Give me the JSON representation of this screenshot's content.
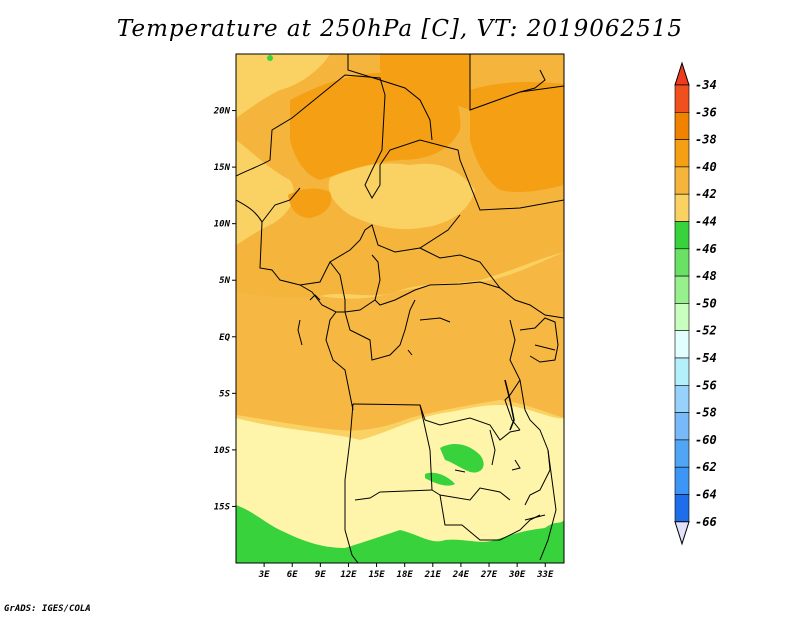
{
  "title": "Temperature at 250hPa [C], VT: 2019062515",
  "footer": "GrADS: IGES/COLA",
  "map": {
    "lon_range": [
      0,
      35
    ],
    "lat_range": [
      -20,
      25
    ],
    "lon_ticks": [
      {
        "value": 3,
        "label": "3E"
      },
      {
        "value": 6,
        "label": "6E"
      },
      {
        "value": 9,
        "label": "9E"
      },
      {
        "value": 12,
        "label": "12E"
      },
      {
        "value": 15,
        "label": "15E"
      },
      {
        "value": 18,
        "label": "18E"
      },
      {
        "value": 21,
        "label": "21E"
      },
      {
        "value": 24,
        "label": "24E"
      },
      {
        "value": 27,
        "label": "27E"
      },
      {
        "value": 30,
        "label": "30E"
      },
      {
        "value": 33,
        "label": "33E"
      }
    ],
    "lat_ticks": [
      {
        "value": 20,
        "label": "20N"
      },
      {
        "value": 15,
        "label": "15N"
      },
      {
        "value": 10,
        "label": "10N"
      },
      {
        "value": 5,
        "label": "5N"
      },
      {
        "value": 0,
        "label": "EQ"
      },
      {
        "value": -5,
        "label": "5S"
      },
      {
        "value": -10,
        "label": "10S"
      },
      {
        "value": -15,
        "label": "15S"
      }
    ]
  },
  "colorbar": {
    "levels": [
      {
        "label": "-34",
        "color": "#f0501e"
      },
      {
        "label": "-36",
        "color": "#f08200"
      },
      {
        "label": "-38",
        "color": "#f5a014"
      },
      {
        "label": "-40",
        "color": "#f5b43c"
      },
      {
        "label": "-42",
        "color": "#fad264"
      },
      {
        "label": "-44",
        "color": "#fff5aa"
      },
      {
        "label": "-46",
        "color": "#37d23c"
      },
      {
        "label": "-48",
        "color": "#69e164"
      },
      {
        "label": "-50",
        "color": "#96f08c"
      },
      {
        "label": "-52",
        "color": "#c8ffbe"
      },
      {
        "label": "-54",
        "color": "#e1ffff"
      },
      {
        "label": "-56",
        "color": "#b4f0fa"
      },
      {
        "label": "-58",
        "color": "#96d2fa"
      },
      {
        "label": "-60",
        "color": "#78b9fa"
      },
      {
        "label": "-62",
        "color": "#50a5f5"
      },
      {
        "label": "-64",
        "color": "#3c96f5"
      },
      {
        "label": "-66",
        "color": "#1e6eeb"
      }
    ],
    "under_color": "#1450d2",
    "extra_colors": [
      "#0f3ca5",
      "#0a1e78"
    ],
    "bottom_triangle_color": "#e1e1fa",
    "top_triangle_color": "#f03c1e"
  }
}
